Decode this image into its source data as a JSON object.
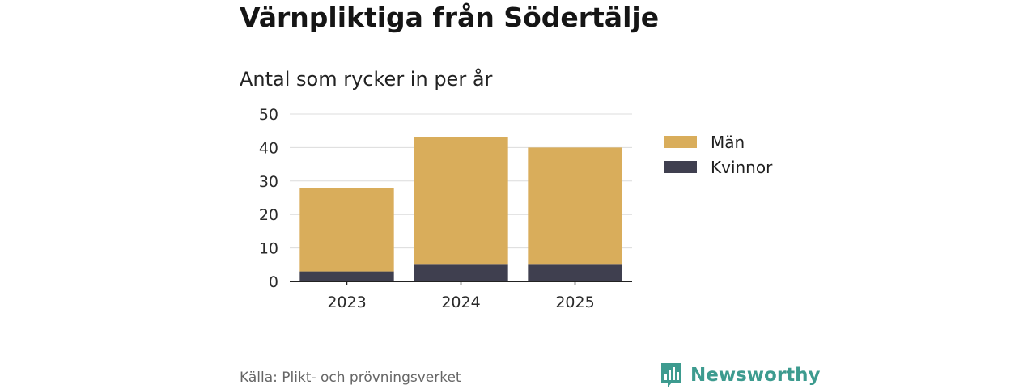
{
  "chart_data": {
    "type": "bar",
    "stacked": true,
    "title": "Värnpliktiga från Södertälje",
    "subtitle": "Antal som rycker in per år",
    "categories": [
      "2023",
      "2024",
      "2025"
    ],
    "series": [
      {
        "name": "Kvinnor",
        "values": [
          3,
          5,
          5
        ],
        "color": "#3f3f4f"
      },
      {
        "name": "Män",
        "values": [
          25,
          38,
          35
        ],
        "color": "#d9ad5b"
      }
    ],
    "ylim": [
      0,
      50
    ],
    "yticks": [
      "0",
      "10",
      "20",
      "30",
      "40",
      "50"
    ],
    "grid": true,
    "legend_placement": "right",
    "legend": [
      "Män",
      "Kvinnor"
    ],
    "xlabel": "",
    "ylabel": ""
  },
  "footer": {
    "source": "Källa: Plikt- och prövningsverket",
    "brand": "Newsworthy",
    "brand_color": "#3d9b8f"
  },
  "icons": {
    "brand_logo": "newsworthy-logo-icon"
  }
}
